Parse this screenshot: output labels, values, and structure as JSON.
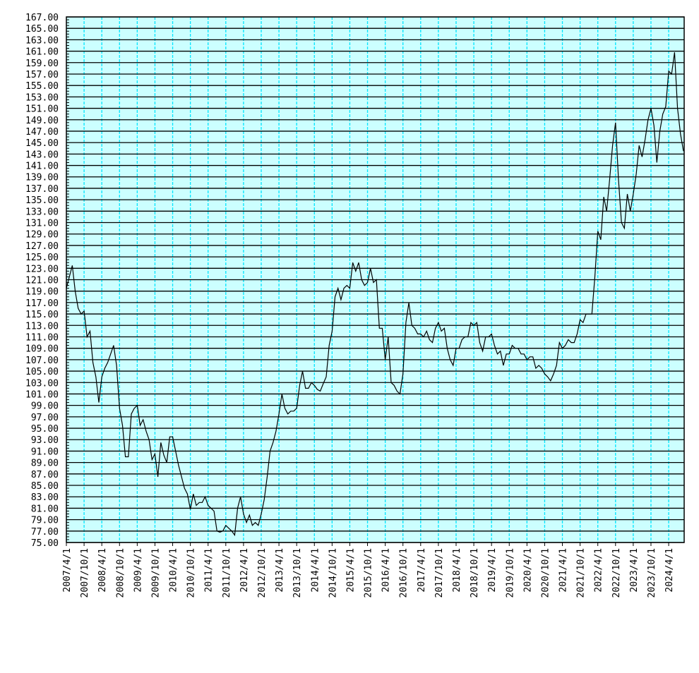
{
  "chart_data": {
    "type": "line",
    "title": "",
    "xlabel": "",
    "ylabel": "",
    "ylim": [
      75,
      167
    ],
    "y_ticks": [
      "75.00",
      "77.00",
      "79.00",
      "81.00",
      "83.00",
      "85.00",
      "87.00",
      "89.00",
      "91.00",
      "93.00",
      "95.00",
      "97.00",
      "99.00",
      "101.00",
      "103.00",
      "105.00",
      "107.00",
      "109.00",
      "111.00",
      "113.00",
      "115.00",
      "117.00",
      "119.00",
      "121.00",
      "123.00",
      "125.00",
      "127.00",
      "129.00",
      "131.00",
      "133.00",
      "135.00",
      "137.00",
      "139.00",
      "141.00",
      "143.00",
      "145.00",
      "147.00",
      "149.00",
      "151.00",
      "153.00",
      "155.00",
      "157.00",
      "159.00",
      "161.00",
      "163.00",
      "165.00",
      "167.00"
    ],
    "x_ticks": [
      "2007/4/1",
      "2007/10/1",
      "2008/4/1",
      "2008/10/1",
      "2009/4/1",
      "2009/10/1",
      "2010/4/1",
      "2010/10/1",
      "2011/4/1",
      "2011/10/1",
      "2012/4/1",
      "2012/10/1",
      "2013/4/1",
      "2013/10/1",
      "2014/4/1",
      "2014/10/1",
      "2015/4/1",
      "2015/10/1",
      "2016/4/1",
      "2016/10/1",
      "2017/4/1",
      "2017/10/1",
      "2018/4/1",
      "2018/10/1",
      "2019/4/1",
      "2019/10/1",
      "2020/4/1",
      "2020/10/1",
      "2021/4/1",
      "2021/10/1",
      "2022/4/1",
      "2022/10/1",
      "2023/4/1",
      "2023/10/1",
      "2024/4/1"
    ],
    "grid": {
      "horizontal": "solid black",
      "vertical": "dashed cyan"
    },
    "colors": {
      "plot_background": "#ccffff",
      "line": "#000000",
      "vertical_grid": "#00e5ff",
      "horizontal_grid": "#000000"
    },
    "series": [
      {
        "x": [
          "2007-04",
          "2007-05",
          "2007-06",
          "2007-07",
          "2007-08",
          "2007-09",
          "2007-10",
          "2007-11",
          "2007-12",
          "2008-01",
          "2008-02",
          "2008-03",
          "2008-04",
          "2008-05",
          "2008-06",
          "2008-07",
          "2008-08",
          "2008-09",
          "2008-10",
          "2008-11",
          "2008-12",
          "2009-01",
          "2009-02",
          "2009-03",
          "2009-04",
          "2009-05",
          "2009-06",
          "2009-07",
          "2009-08",
          "2009-09",
          "2009-10",
          "2009-11",
          "2009-12",
          "2010-01",
          "2010-02",
          "2010-03",
          "2010-04",
          "2010-05",
          "2010-06",
          "2010-07",
          "2010-08",
          "2010-09",
          "2010-10",
          "2010-11",
          "2010-12",
          "2011-01",
          "2011-02",
          "2011-03",
          "2011-04",
          "2011-05",
          "2011-06",
          "2011-07",
          "2011-08",
          "2011-09",
          "2011-10",
          "2011-11",
          "2011-12",
          "2012-01",
          "2012-02",
          "2012-03",
          "2012-04",
          "2012-05",
          "2012-06",
          "2012-07",
          "2012-08",
          "2012-09",
          "2012-10",
          "2012-11",
          "2012-12",
          "2013-01",
          "2013-02",
          "2013-03",
          "2013-04",
          "2013-05",
          "2013-06",
          "2013-07",
          "2013-08",
          "2013-09",
          "2013-10",
          "2013-11",
          "2013-12",
          "2014-01",
          "2014-02",
          "2014-03",
          "2014-04",
          "2014-05",
          "2014-06",
          "2014-07",
          "2014-08",
          "2014-09",
          "2014-10",
          "2014-11",
          "2014-12",
          "2015-01",
          "2015-02",
          "2015-03",
          "2015-04",
          "2015-05",
          "2015-06",
          "2015-07",
          "2015-08",
          "2015-09",
          "2015-10",
          "2015-11",
          "2015-12",
          "2016-01",
          "2016-02",
          "2016-03",
          "2016-04",
          "2016-05",
          "2016-06",
          "2016-07",
          "2016-08",
          "2016-09",
          "2016-10",
          "2016-11",
          "2016-12",
          "2017-01",
          "2017-02",
          "2017-03",
          "2017-04",
          "2017-05",
          "2017-06",
          "2017-07",
          "2017-08",
          "2017-09",
          "2017-10",
          "2017-11",
          "2017-12",
          "2018-01",
          "2018-02",
          "2018-03",
          "2018-04",
          "2018-05",
          "2018-06",
          "2018-07",
          "2018-08",
          "2018-09",
          "2018-10",
          "2018-11",
          "2018-12",
          "2019-01",
          "2019-02",
          "2019-03",
          "2019-04",
          "2019-05",
          "2019-06",
          "2019-07",
          "2019-08",
          "2019-09",
          "2019-10",
          "2019-11",
          "2019-12",
          "2020-01",
          "2020-02",
          "2020-03",
          "2020-04",
          "2020-05",
          "2020-06",
          "2020-07",
          "2020-08",
          "2020-09",
          "2020-10",
          "2020-11",
          "2020-12",
          "2021-01",
          "2021-02",
          "2021-03",
          "2021-04",
          "2021-05",
          "2021-06",
          "2021-07",
          "2021-08",
          "2021-09",
          "2021-10",
          "2021-11",
          "2021-12",
          "2022-01",
          "2022-02",
          "2022-03",
          "2022-04",
          "2022-05",
          "2022-06",
          "2022-07",
          "2022-08",
          "2022-09",
          "2022-10",
          "2022-11",
          "2022-12",
          "2023-01",
          "2023-02",
          "2023-03",
          "2023-04",
          "2023-05",
          "2023-06",
          "2023-07",
          "2023-08",
          "2023-09",
          "2023-10",
          "2023-11",
          "2023-12",
          "2024-01",
          "2024-02",
          "2024-03",
          "2024-04",
          "2024-05",
          "2024-06",
          "2024-07",
          "2024-08",
          "2024-09"
        ],
        "values": [
          119.5,
          121.5,
          123.5,
          119,
          116,
          115,
          115.5,
          111,
          112,
          106.5,
          104,
          99.5,
          104,
          105.5,
          106.5,
          108,
          109.5,
          106,
          98.5,
          95.5,
          90,
          90,
          97.5,
          98.5,
          99,
          95.5,
          96.5,
          94.5,
          93,
          89.5,
          90.5,
          86.5,
          92.5,
          90.3,
          89,
          93.5,
          93.5,
          91,
          88.5,
          86.5,
          84.5,
          83.5,
          80.8,
          83.5,
          81.5,
          82,
          82,
          83,
          81.5,
          81,
          80.5,
          77,
          76.8,
          77,
          78,
          77.5,
          77,
          76.3,
          81,
          83,
          80,
          78.5,
          79.8,
          78,
          78.5,
          78,
          80,
          82.5,
          86.5,
          91,
          92.5,
          94.5,
          97.5,
          101,
          98.5,
          97.5,
          98,
          98,
          98.5,
          102.5,
          105,
          102,
          102,
          103,
          102.5,
          101.8,
          101.5,
          102.8,
          104,
          109.5,
          112,
          118,
          119.5,
          117.5,
          119.5,
          120,
          119.5,
          124,
          122.5,
          124,
          121,
          120,
          120.5,
          123,
          120.5,
          121,
          112.5,
          112.5,
          107,
          111,
          103,
          102.5,
          101.5,
          101,
          104.5,
          113.5,
          117,
          113,
          112.5,
          111.5,
          111.5,
          111,
          112,
          110.5,
          110,
          112.5,
          113.5,
          112,
          112.5,
          109,
          107,
          106,
          109,
          109,
          110.5,
          111,
          111,
          113.5,
          113,
          113.5,
          110,
          108.5,
          111,
          111,
          111.5,
          109.5,
          108,
          108.5,
          106,
          108,
          108,
          109.5,
          109,
          109,
          108,
          108,
          107,
          107.5,
          107.5,
          105.5,
          106,
          105.5,
          104.5,
          104,
          103.3,
          104.5,
          106,
          110,
          109,
          109.5,
          110.5,
          110,
          110,
          111.5,
          114,
          113.5,
          115,
          115,
          115,
          121.5,
          129.5,
          128,
          135.5,
          133,
          138.5,
          144.5,
          148.5,
          138.5,
          131,
          130,
          136,
          133,
          136,
          139.5,
          144.5,
          142.5,
          145.5,
          149,
          151,
          148,
          141.5,
          147,
          150,
          151.3,
          157.5,
          157,
          160.8,
          151,
          146.5,
          143.5
        ]
      }
    ]
  }
}
